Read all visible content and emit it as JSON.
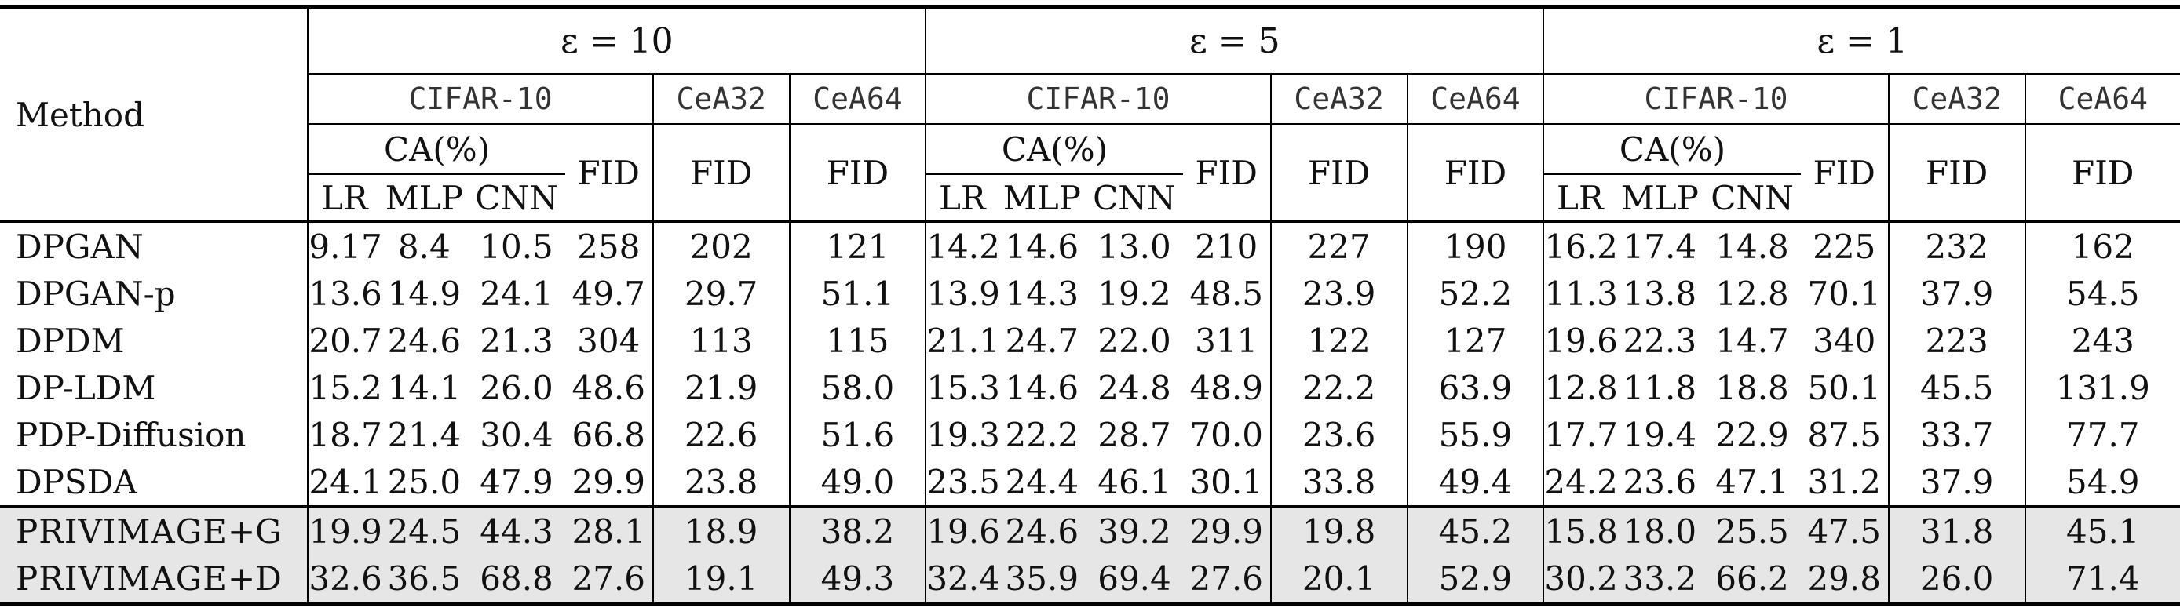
{
  "header": {
    "method_label": "Method",
    "eps_groups": [
      "ε = 10",
      "ε = 5",
      "ε = 1"
    ],
    "datasets": [
      "CIFAR-10",
      "CeA32",
      "CeA64"
    ],
    "ca_label": "CA(%)",
    "fid_label": "FID",
    "classifiers": [
      "LR",
      "MLP",
      "CNN"
    ]
  },
  "rows": [
    {
      "method": "DPGAN",
      "method_main": "DPGAN",
      "method_suffix": "",
      "eps10": [
        "9.17",
        "8.4",
        "10.5",
        "258",
        "202",
        "121"
      ],
      "eps5": [
        "14.2",
        "14.6",
        "13.0",
        "210",
        "227",
        "190"
      ],
      "eps1": [
        "16.2",
        "17.4",
        "14.8",
        "225",
        "232",
        "162"
      ]
    },
    {
      "method": "DPGAN-p",
      "method_main": "DPGAN-p",
      "method_suffix": "",
      "eps10": [
        "13.6",
        "14.9",
        "24.1",
        "49.7",
        "29.7",
        "51.1"
      ],
      "eps5": [
        "13.9",
        "14.3",
        "19.2",
        "48.5",
        "23.9",
        "52.2"
      ],
      "eps1": [
        "11.3",
        "13.8",
        "12.8",
        "70.1",
        "37.9",
        "54.5"
      ]
    },
    {
      "method": "DPDM",
      "method_main": "DPDM",
      "method_suffix": "",
      "eps10": [
        "20.7",
        "24.6",
        "21.3",
        "304",
        "113",
        "115"
      ],
      "eps5": [
        "21.1",
        "24.7",
        "22.0",
        "311",
        "122",
        "127"
      ],
      "eps1": [
        "19.6",
        "22.3",
        "14.7",
        "340",
        "223",
        "243"
      ]
    },
    {
      "method": "DP-LDM",
      "method_main": "DP-LDM",
      "method_suffix": "",
      "eps10": [
        "15.2",
        "14.1",
        "26.0",
        "48.6",
        "21.9",
        "58.0"
      ],
      "eps5": [
        "15.3",
        "14.6",
        "24.8",
        "48.9",
        "22.2",
        "63.9"
      ],
      "eps1": [
        "12.8",
        "11.8",
        "18.8",
        "50.1",
        "45.5",
        "131.9"
      ]
    },
    {
      "method": "PDP-Diffusion",
      "method_main": "PDP-Diffusion",
      "method_suffix": "",
      "eps10": [
        "18.7",
        "21.4",
        "30.4",
        "66.8",
        "22.6",
        "51.6"
      ],
      "eps5": [
        "19.3",
        "22.2",
        "28.7",
        "70.0",
        "23.6",
        "55.9"
      ],
      "eps1": [
        "17.7",
        "19.4",
        "22.9",
        "87.5",
        "33.7",
        "77.7"
      ]
    },
    {
      "method": "DPSDA",
      "method_main": "DPSDA",
      "method_suffix": "",
      "eps10": [
        "24.1",
        "25.0",
        "47.9",
        "29.9",
        "23.8",
        "49.0"
      ],
      "eps5": [
        "23.5",
        "24.4",
        "46.1",
        "30.1",
        "33.8",
        "49.4"
      ],
      "eps1": [
        "24.2",
        "23.6",
        "47.1",
        "31.2",
        "37.9",
        "54.9"
      ]
    },
    {
      "method": "PRIVIMAGE+G",
      "method_main": "PRIVIMAGE",
      "method_suffix": "+G",
      "shaded": true,
      "eps10": [
        "19.9",
        "24.5",
        "44.3",
        "28.1",
        "18.9",
        "38.2"
      ],
      "eps5": [
        "19.6",
        "24.6",
        "39.2",
        "29.9",
        "19.8",
        "45.2"
      ],
      "eps1": [
        "15.8",
        "18.0",
        "25.5",
        "47.5",
        "31.8",
        "45.1"
      ],
      "bold10": [
        4,
        5
      ],
      "bold5": [
        4,
        5
      ],
      "bold1": [
        5
      ]
    },
    {
      "method": "PRIVIMAGE+D",
      "method_main": "PRIVIMAGE",
      "method_suffix": "+D",
      "shaded": true,
      "eps10": [
        "32.6",
        "36.5",
        "68.8",
        "27.6",
        "19.1",
        "49.3"
      ],
      "eps5": [
        "32.4",
        "35.9",
        "69.4",
        "27.6",
        "20.1",
        "52.9"
      ],
      "eps1": [
        "30.2",
        "33.2",
        "66.2",
        "29.8",
        "26.0",
        "71.4"
      ],
      "bold10": [
        0,
        1,
        2,
        3
      ],
      "bold5": [
        0,
        1,
        2,
        3
      ],
      "bold1": [
        0,
        1,
        2,
        3,
        4
      ]
    }
  ]
}
